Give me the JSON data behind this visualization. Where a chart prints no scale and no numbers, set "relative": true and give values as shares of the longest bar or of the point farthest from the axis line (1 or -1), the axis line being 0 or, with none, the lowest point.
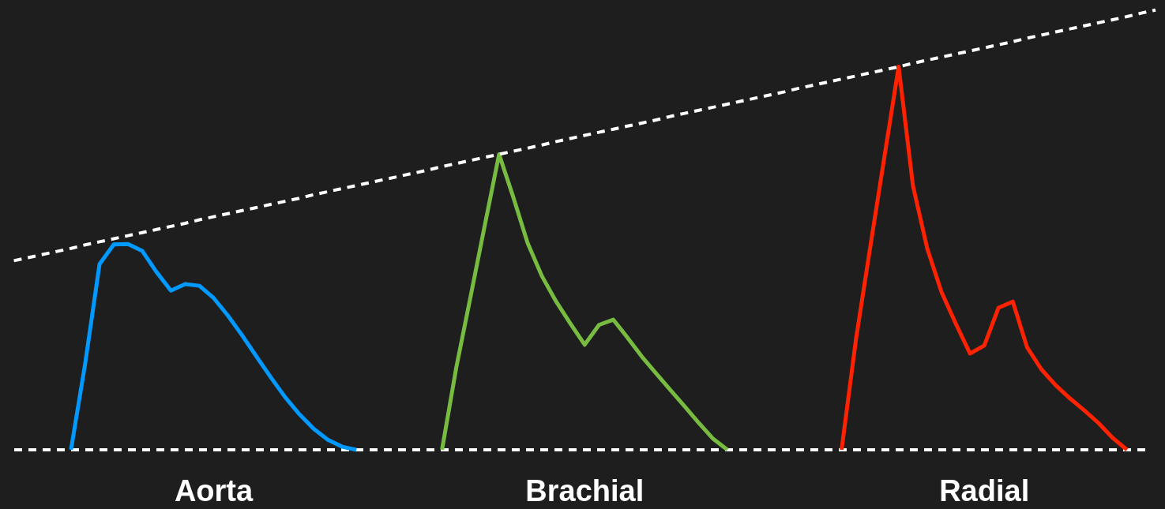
{
  "chart_data": {
    "type": "line",
    "relative": true,
    "categories": [
      null,
      null,
      null,
      null,
      null,
      null,
      null,
      null,
      null,
      null,
      null,
      null,
      null,
      null,
      null,
      null,
      null,
      null,
      null,
      null,
      null,
      null,
      null,
      null,
      null,
      null,
      null,
      null,
      null,
      null,
      null,
      null,
      null,
      null,
      null,
      null,
      null,
      null,
      null,
      null,
      null,
      null,
      null,
      null,
      null,
      null,
      null,
      null,
      null,
      null,
      null,
      null,
      null,
      null,
      null,
      null,
      null,
      null,
      null,
      null,
      null,
      null,
      null,
      null,
      null,
      null,
      null,
      null,
      null,
      null,
      null,
      null,
      null,
      null,
      null,
      null,
      null,
      null,
      null,
      null,
      null
    ],
    "series": [
      {
        "name": "Aorta",
        "color": "#0099ff",
        "values": [
          null,
          null,
          null,
          null,
          0,
          0.197,
          0.422,
          0.467,
          0.468,
          0.452,
          0.404,
          0.362,
          0.377,
          0.373,
          0.345,
          0.305,
          0.26,
          0.212,
          0.165,
          0.12,
          0.081,
          0.048,
          0.023,
          0.007,
          0,
          null,
          null,
          null,
          null,
          null,
          null,
          null,
          null,
          null,
          null,
          null,
          null,
          null,
          null,
          null,
          null,
          null,
          null,
          null,
          null,
          null,
          null,
          null,
          null,
          null,
          null,
          null,
          null,
          null,
          null,
          null,
          null,
          null,
          null,
          null,
          null,
          null,
          null,
          null,
          null,
          null,
          null,
          null,
          null,
          null,
          null,
          null,
          null,
          null,
          null,
          null,
          null,
          null,
          null,
          null,
          null
        ]
      },
      {
        "name": "Brachial",
        "color": "#77bb41",
        "values": [
          null,
          null,
          null,
          null,
          null,
          null,
          null,
          null,
          null,
          null,
          null,
          null,
          null,
          null,
          null,
          null,
          null,
          null,
          null,
          null,
          null,
          null,
          null,
          null,
          null,
          null,
          null,
          null,
          null,
          null,
          0,
          0.187,
          0.348,
          0.511,
          0.672,
          0.574,
          0.47,
          0.395,
          0.337,
          0.287,
          0.239,
          0.284,
          0.296,
          0.255,
          0.212,
          0.174,
          0.136,
          0.099,
          0.061,
          0.025,
          0,
          null,
          null,
          null,
          null,
          null,
          null,
          null,
          null,
          null,
          null,
          null,
          null,
          null,
          null,
          null,
          null,
          null,
          null,
          null,
          null,
          null,
          null,
          null,
          null,
          null,
          null,
          null,
          null,
          null,
          null
        ]
      },
      {
        "name": "Radial",
        "color": "#ff2200",
        "values": [
          null,
          null,
          null,
          null,
          null,
          null,
          null,
          null,
          null,
          null,
          null,
          null,
          null,
          null,
          null,
          null,
          null,
          null,
          null,
          null,
          null,
          null,
          null,
          null,
          null,
          null,
          null,
          null,
          null,
          null,
          null,
          null,
          null,
          null,
          null,
          null,
          null,
          null,
          null,
          null,
          null,
          null,
          null,
          null,
          null,
          null,
          null,
          null,
          null,
          null,
          null,
          null,
          null,
          null,
          null,
          null,
          null,
          null,
          0,
          0.249,
          0.459,
          0.666,
          0.871,
          0.601,
          0.458,
          0.359,
          0.287,
          0.219,
          0.237,
          0.323,
          0.337,
          0.233,
          0.183,
          0.147,
          0.117,
          0.09,
          0.061,
          0.027,
          0,
          null,
          null
        ]
      },
      {
        "color": "#ffffff",
        "line_style": "dashed",
        "values": [
          0.43,
          0.437,
          0.444,
          0.451,
          0.458,
          0.466,
          0.473,
          0.48,
          0.487,
          0.494,
          0.501,
          0.508,
          0.515,
          0.523,
          0.53,
          0.537,
          0.544,
          0.551,
          0.558,
          0.565,
          0.572,
          0.58,
          0.587,
          0.594,
          0.601,
          0.608,
          0.615,
          0.622,
          0.629,
          0.636,
          0.644,
          0.651,
          0.658,
          0.665,
          0.672,
          0.679,
          0.686,
          0.693,
          0.701,
          0.708,
          0.715,
          0.722,
          0.729,
          0.736,
          0.743,
          0.75,
          0.758,
          0.765,
          0.772,
          0.779,
          0.786,
          0.793,
          0.8,
          0.807,
          0.814,
          0.822,
          0.829,
          0.836,
          0.843,
          0.85,
          0.857,
          0.864,
          0.871,
          0.879,
          0.886,
          0.893,
          0.9,
          0.907,
          0.914,
          0.921,
          0.928,
          0.936,
          0.943,
          0.95,
          0.957,
          0.964,
          0.971,
          0.978,
          0.985,
          0.993,
          1
        ]
      }
    ]
  }
}
